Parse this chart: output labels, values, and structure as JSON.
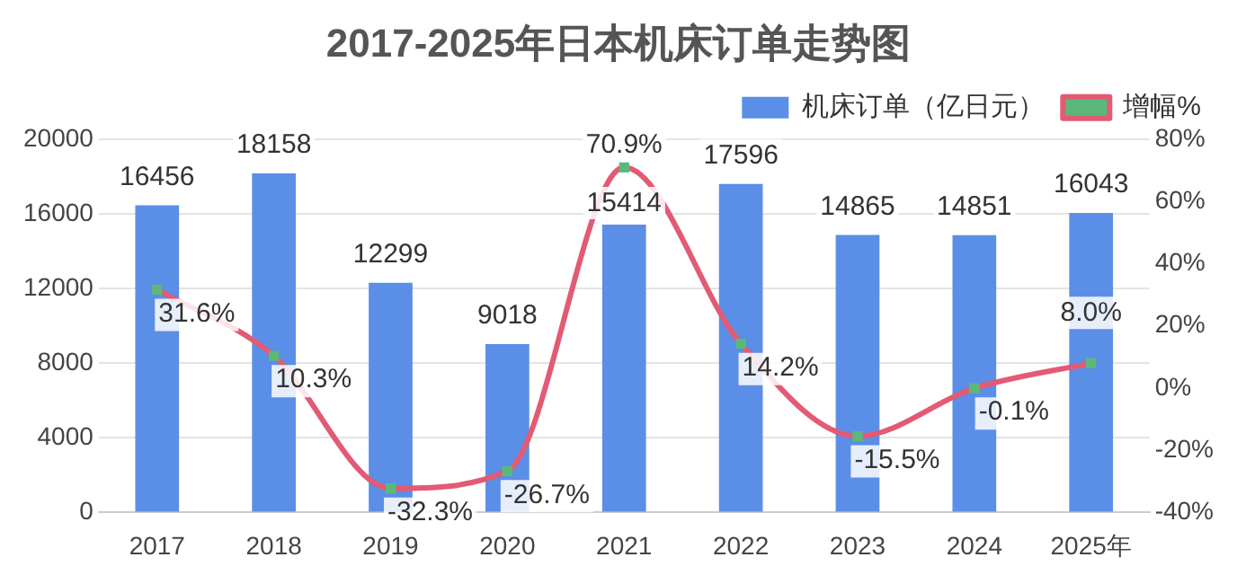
{
  "chart_data": {
    "type": "bar",
    "title": "2017-2025年日本机床订单走势图",
    "categories": [
      "2017",
      "2018",
      "2019",
      "2020",
      "2021",
      "2022",
      "2023",
      "2024",
      "2025年"
    ],
    "series": [
      {
        "name": "机床订单（亿日元）",
        "color": "#5b8ee6",
        "values": [
          16456,
          18158,
          12299,
          9018,
          15414,
          17596,
          14865,
          14851,
          16043
        ],
        "value_labels": [
          "16456",
          "18158",
          "12299",
          "9018",
          "15414",
          "17596",
          "14865",
          "14851",
          "16043"
        ]
      },
      {
        "name": "增幅%",
        "type": "line",
        "axis": "y2",
        "color": "#e35a74",
        "marker": "square",
        "line_style": "solid",
        "values": [
          31.6,
          10.3,
          -32.3,
          -26.7,
          70.9,
          14.2,
          -15.5,
          -0.1,
          8.0
        ],
        "value_labels": [
          "31.6%",
          "10.3%",
          "-32.3%",
          "-26.7%",
          "70.9%",
          "14.2%",
          "-15.5%",
          "-0.1%",
          "8.0%"
        ]
      }
    ],
    "ylim": [
      0,
      20000
    ],
    "yticks": [
      0,
      4000,
      8000,
      12000,
      16000,
      20000
    ],
    "y2lim": [
      -40,
      80
    ],
    "y2ticks": [
      {
        "value": -40,
        "label": "-40%"
      },
      {
        "value": -20,
        "label": "-20%"
      },
      {
        "value": 0,
        "label": "0%"
      },
      {
        "value": 20,
        "label": "20%"
      },
      {
        "value": 40,
        "label": "40%"
      },
      {
        "value": 60,
        "label": "60%"
      },
      {
        "value": 80,
        "label": "80%"
      }
    ],
    "grid": "y",
    "legend": "top right"
  }
}
